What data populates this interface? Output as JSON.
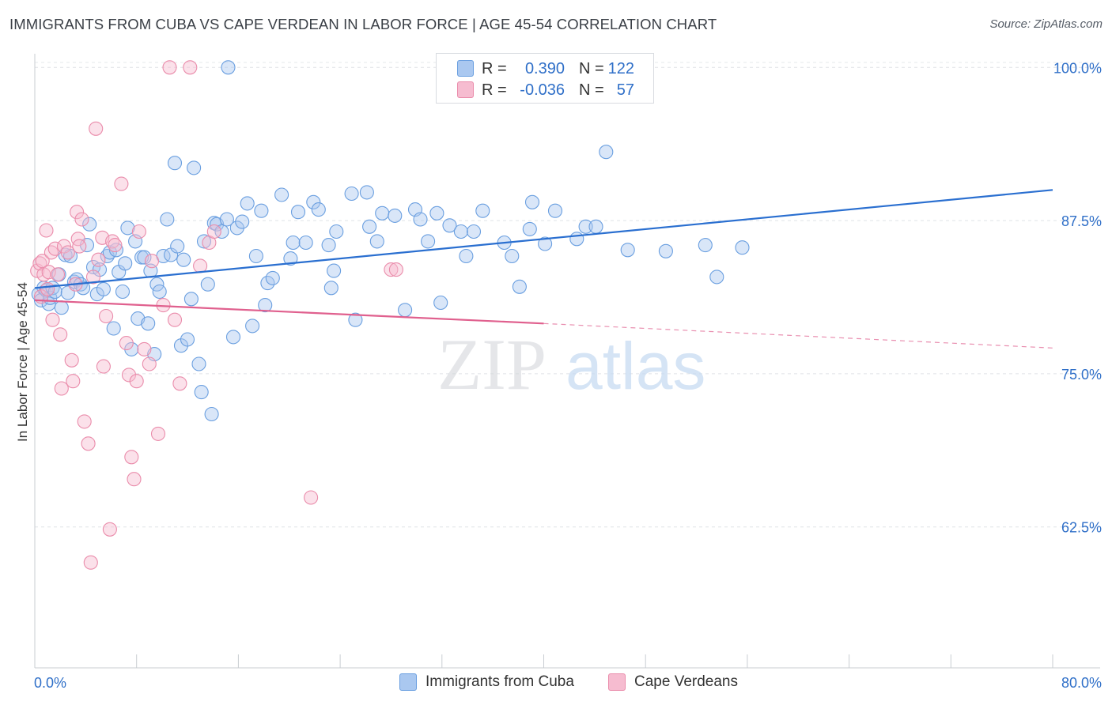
{
  "title": "IMMIGRANTS FROM CUBA VS CAPE VERDEAN IN LABOR FORCE | AGE 45-54 CORRELATION CHART",
  "source": "Source: ZipAtlas.com",
  "watermark": {
    "zip": "ZIP",
    "atlas": "atlas"
  },
  "legend": {
    "r_label": "R =",
    "n_label": "N =",
    "series": [
      {
        "name": "Immigrants from Cuba",
        "r": "0.390",
        "n": "122",
        "color": "#aac8f0",
        "stroke": "#6a9fe0",
        "line": "#2a6fd0"
      },
      {
        "name": "Cape Verdeans",
        "r": "-0.036",
        "n": "57",
        "color": "#f6bcd0",
        "stroke": "#ea8cab",
        "line": "#e0608e"
      }
    ]
  },
  "chart_data": {
    "type": "scatter",
    "title": "IMMIGRANTS FROM CUBA VS CAPE VERDEAN IN LABOR FORCE | AGE 45-54 CORRELATION CHART",
    "xlabel": "",
    "ylabel": "In Labor Force | Age 45-54",
    "xlim": [
      0,
      80
    ],
    "ylim": [
      51,
      101.5
    ],
    "x_tick_labels": [
      "0.0%",
      "80.0%"
    ],
    "y_ticks": [
      62.5,
      75.0,
      87.5,
      100.0
    ],
    "y_tick_labels": [
      "62.5%",
      "75.0%",
      "87.5%",
      "100.0%"
    ],
    "grid": true,
    "legend_position": "top-center",
    "series": [
      {
        "name": "Immigrants from Cuba",
        "trend": {
          "x": [
            0,
            80
          ],
          "y": [
            82.0,
            90.0
          ]
        },
        "points": [
          [
            0.3,
            81.5
          ],
          [
            0.5,
            81.0
          ],
          [
            0.7,
            82.0
          ],
          [
            0.9,
            81.8
          ],
          [
            1.1,
            80.7
          ],
          [
            1.2,
            81.2
          ],
          [
            1.4,
            82.0
          ],
          [
            1.6,
            81.7
          ],
          [
            1.9,
            83.1
          ],
          [
            2.1,
            80.4
          ],
          [
            2.4,
            84.7
          ],
          [
            2.6,
            81.6
          ],
          [
            2.8,
            84.6
          ],
          [
            3.1,
            82.5
          ],
          [
            3.3,
            82.7
          ],
          [
            3.6,
            82.3
          ],
          [
            3.8,
            82.0
          ],
          [
            4.1,
            85.5
          ],
          [
            4.3,
            87.2
          ],
          [
            4.6,
            83.7
          ],
          [
            4.9,
            81.5
          ],
          [
            5.1,
            83.5
          ],
          [
            5.4,
            81.9
          ],
          [
            5.7,
            84.6
          ],
          [
            5.9,
            84.9
          ],
          [
            6.2,
            78.7
          ],
          [
            6.4,
            85.1
          ],
          [
            6.6,
            83.3
          ],
          [
            6.9,
            81.7
          ],
          [
            7.1,
            84.0
          ],
          [
            7.3,
            86.9
          ],
          [
            7.6,
            77.0
          ],
          [
            7.9,
            85.8
          ],
          [
            8.1,
            79.5
          ],
          [
            8.4,
            84.5
          ],
          [
            8.6,
            84.5
          ],
          [
            8.9,
            79.1
          ],
          [
            9.1,
            83.4
          ],
          [
            9.4,
            76.6
          ],
          [
            9.6,
            82.3
          ],
          [
            9.8,
            81.7
          ],
          [
            10.1,
            84.6
          ],
          [
            10.4,
            87.6
          ],
          [
            10.7,
            84.7
          ],
          [
            11.0,
            92.2
          ],
          [
            11.2,
            85.4
          ],
          [
            11.5,
            77.3
          ],
          [
            11.7,
            84.3
          ],
          [
            12.0,
            77.8
          ],
          [
            12.3,
            81.1
          ],
          [
            12.5,
            91.8
          ],
          [
            12.9,
            75.8
          ],
          [
            13.1,
            73.5
          ],
          [
            13.3,
            85.8
          ],
          [
            13.6,
            82.3
          ],
          [
            13.9,
            71.7
          ],
          [
            14.1,
            87.3
          ],
          [
            14.3,
            87.2
          ],
          [
            14.7,
            86.6
          ],
          [
            15.1,
            87.6
          ],
          [
            15.2,
            100.0
          ],
          [
            15.6,
            78.0
          ],
          [
            15.9,
            86.9
          ],
          [
            16.3,
            87.4
          ],
          [
            16.7,
            88.9
          ],
          [
            17.1,
            78.9
          ],
          [
            17.4,
            84.6
          ],
          [
            17.8,
            88.3
          ],
          [
            18.1,
            80.6
          ],
          [
            18.3,
            82.4
          ],
          [
            18.7,
            82.8
          ],
          [
            19.4,
            89.6
          ],
          [
            20.1,
            84.4
          ],
          [
            20.3,
            85.7
          ],
          [
            20.7,
            88.2
          ],
          [
            21.3,
            85.7
          ],
          [
            21.9,
            89.0
          ],
          [
            22.3,
            88.4
          ],
          [
            23.1,
            85.5
          ],
          [
            23.3,
            82.0
          ],
          [
            23.5,
            83.4
          ],
          [
            23.7,
            86.6
          ],
          [
            24.9,
            89.7
          ],
          [
            25.2,
            79.4
          ],
          [
            26.1,
            89.8
          ],
          [
            26.3,
            87.0
          ],
          [
            26.9,
            85.8
          ],
          [
            27.3,
            88.1
          ],
          [
            28.3,
            87.9
          ],
          [
            29.1,
            80.2
          ],
          [
            29.9,
            88.4
          ],
          [
            30.3,
            87.6
          ],
          [
            30.9,
            85.8
          ],
          [
            31.6,
            88.1
          ],
          [
            31.9,
            80.8
          ],
          [
            32.6,
            87.1
          ],
          [
            33.5,
            86.6
          ],
          [
            33.9,
            84.6
          ],
          [
            34.5,
            86.6
          ],
          [
            35.2,
            88.3
          ],
          [
            36.9,
            85.7
          ],
          [
            37.5,
            84.6
          ],
          [
            38.1,
            82.1
          ],
          [
            38.9,
            86.8
          ],
          [
            39.1,
            89.0
          ],
          [
            40.1,
            85.6
          ],
          [
            40.9,
            88.3
          ],
          [
            42.6,
            86.0
          ],
          [
            43.3,
            87.0
          ],
          [
            44.1,
            87.0
          ],
          [
            44.9,
            93.1
          ],
          [
            46.1,
            100.0
          ],
          [
            46.6,
            85.1
          ],
          [
            49.6,
            85.0
          ],
          [
            52.7,
            85.5
          ],
          [
            53.6,
            82.9
          ],
          [
            55.6,
            85.3
          ]
        ]
      },
      {
        "name": "Cape Verdeans",
        "trend": {
          "x": [
            0,
            40
          ],
          "y": [
            81.0,
            79.1
          ]
        },
        "trend_extension": {
          "x": [
            40,
            80
          ],
          "y": [
            79.1,
            77.1
          ]
        },
        "points": [
          [
            0.2,
            83.4
          ],
          [
            0.4,
            84.0
          ],
          [
            0.5,
            81.3
          ],
          [
            0.6,
            84.2
          ],
          [
            0.7,
            83.1
          ],
          [
            0.9,
            86.7
          ],
          [
            1.0,
            81.9
          ],
          [
            1.1,
            83.3
          ],
          [
            1.3,
            84.9
          ],
          [
            1.4,
            79.4
          ],
          [
            1.6,
            85.2
          ],
          [
            1.8,
            83.1
          ],
          [
            2.0,
            78.2
          ],
          [
            2.1,
            73.8
          ],
          [
            2.3,
            85.4
          ],
          [
            2.6,
            84.9
          ],
          [
            2.9,
            76.1
          ],
          [
            3.0,
            74.4
          ],
          [
            3.2,
            82.3
          ],
          [
            3.3,
            88.2
          ],
          [
            3.4,
            86.0
          ],
          [
            3.5,
            85.4
          ],
          [
            3.7,
            87.6
          ],
          [
            3.9,
            71.1
          ],
          [
            4.2,
            69.3
          ],
          [
            4.4,
            59.6
          ],
          [
            4.6,
            82.9
          ],
          [
            4.8,
            95.0
          ],
          [
            5.0,
            84.3
          ],
          [
            5.3,
            86.1
          ],
          [
            5.4,
            75.6
          ],
          [
            5.6,
            79.7
          ],
          [
            5.9,
            62.3
          ],
          [
            6.1,
            85.8
          ],
          [
            6.3,
            85.5
          ],
          [
            6.8,
            90.5
          ],
          [
            7.2,
            77.5
          ],
          [
            7.4,
            74.9
          ],
          [
            7.6,
            68.2
          ],
          [
            7.8,
            66.4
          ],
          [
            8.0,
            74.4
          ],
          [
            8.2,
            86.6
          ],
          [
            8.6,
            77.0
          ],
          [
            9.0,
            75.8
          ],
          [
            9.2,
            84.2
          ],
          [
            9.7,
            70.1
          ],
          [
            10.1,
            80.6
          ],
          [
            10.6,
            100.0
          ],
          [
            11.0,
            79.4
          ],
          [
            11.4,
            74.2
          ],
          [
            12.2,
            100.0
          ],
          [
            13.0,
            83.8
          ],
          [
            13.7,
            85.7
          ],
          [
            14.1,
            86.6
          ],
          [
            21.7,
            64.9
          ],
          [
            28.0,
            83.5
          ],
          [
            28.4,
            83.5
          ]
        ]
      }
    ]
  }
}
